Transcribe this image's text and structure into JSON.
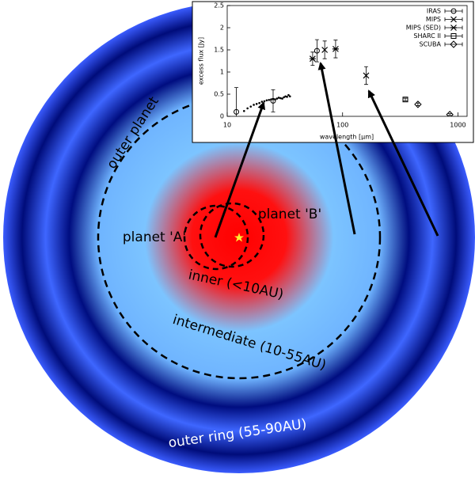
{
  "diagram": {
    "outer_planet": "outer planet",
    "planet_a": "planet 'A'",
    "planet_b": "planet 'B'",
    "inner": "inner (<10AU)",
    "intermediate": "intermediate (10-55AU)",
    "outer_ring": "outer ring (55-90AU)"
  },
  "chart_data": {
    "type": "scatter",
    "xlabel": "wavelength [μm]",
    "ylabel": "excess flux [Jy]",
    "xlog": true,
    "xlim": [
      10,
      1200
    ],
    "xticks": [
      10,
      100,
      1000
    ],
    "ylim": [
      0,
      2.5
    ],
    "yticks": [
      0,
      0.5,
      1,
      1.5,
      2,
      2.5
    ],
    "legend": "top-right",
    "series": [
      {
        "name": "IRAS",
        "marker": "circle",
        "color": "#000000",
        "x": [
          12,
          25,
          60
        ],
        "values": [
          0.1,
          0.35,
          1.48
        ],
        "errors": [
          0.55,
          0.25,
          0.25
        ]
      },
      {
        "name": "MIPS",
        "marker": "x",
        "color": "#000000",
        "x": [
          70,
          160
        ],
        "values": [
          1.5,
          0.92
        ],
        "errors": [
          0.2,
          0.2
        ]
      },
      {
        "name": "MIPS (SED)",
        "marker": "asterisk",
        "color": "#000000",
        "x": [
          55,
          87
        ],
        "values": [
          1.3,
          1.52
        ],
        "errors": [
          0.15,
          0.2
        ]
      },
      {
        "name": "SHARC II",
        "marker": "square",
        "color": "#000000",
        "x": [
          350
        ],
        "values": [
          0.38
        ],
        "errors": [
          0.03
        ]
      },
      {
        "name": "SCUBA",
        "marker": "diamond",
        "color": "#000000",
        "x": [
          450,
          850
        ],
        "values": [
          0.27,
          0.04
        ],
        "errors": [
          0.03,
          0.02
        ]
      }
    ],
    "spectrum": {
      "color": "#000000",
      "x": [
        14,
        15,
        16,
        17,
        18,
        19,
        20,
        21,
        22,
        23,
        24,
        25,
        26,
        27,
        28,
        29,
        30,
        31,
        32,
        33,
        34,
        35
      ],
      "values": [
        0.12,
        0.18,
        0.22,
        0.26,
        0.28,
        0.3,
        0.33,
        0.34,
        0.36,
        0.37,
        0.38,
        0.39,
        0.38,
        0.4,
        0.42,
        0.41,
        0.4,
        0.43,
        0.45,
        0.44,
        0.48,
        0.45
      ]
    }
  }
}
